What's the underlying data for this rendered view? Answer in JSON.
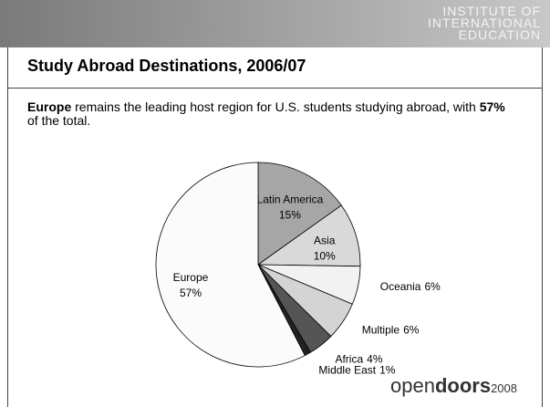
{
  "header": {
    "logo": [
      "INSTITUTE OF",
      "INTERNATIONAL",
      "EDUCATION"
    ]
  },
  "title": "Study Abroad Destinations, 2006/07",
  "body": [
    "Europe",
    " remains the leading host region for U.S. students studying abroad, with ",
    "57%",
    " of the total."
  ],
  "footer": [
    "open",
    "doors",
    "2008"
  ],
  "chart_data": {
    "type": "pie",
    "categories": [
      "Latin America",
      "Asia",
      "Oceania",
      "Multiple",
      "Africa",
      "Middle East",
      "Europe"
    ],
    "values": [
      15,
      10,
      6,
      6,
      4,
      1,
      57
    ],
    "value_labels": [
      "15%",
      "10%",
      "6%",
      "6%",
      "4%",
      "1%",
      "57%"
    ],
    "colors": [
      "#a6a6a6",
      "#d9d9d9",
      "#f2f2f2",
      "#d4d4d4",
      "#555555",
      "#222222",
      "#fbfbfb"
    ]
  }
}
